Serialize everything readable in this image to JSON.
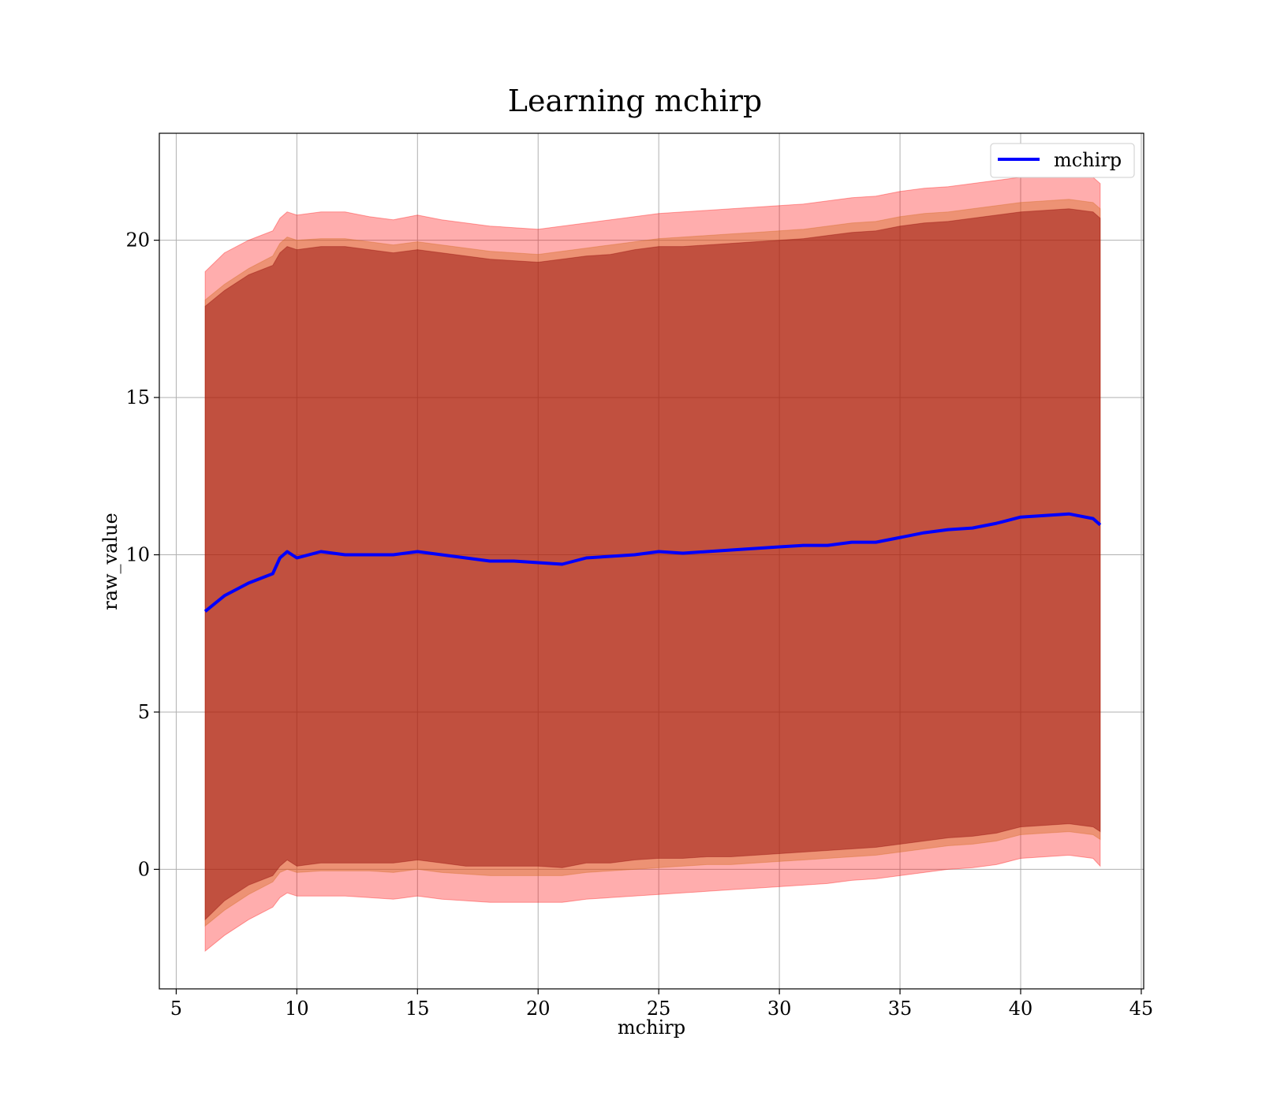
{
  "chart_data": {
    "type": "area",
    "title": "Learning mchirp",
    "xlabel": "mchirp",
    "ylabel": "raw_value",
    "xlim": [
      4.3,
      45.1
    ],
    "ylim": [
      -3.8,
      23.4
    ],
    "x_ticks": [
      5,
      10,
      15,
      20,
      25,
      30,
      35,
      40,
      45
    ],
    "y_ticks": [
      0,
      5,
      10,
      15,
      20
    ],
    "grid": true,
    "legend": {
      "placement": "upper right",
      "entries": [
        "mchirp"
      ]
    },
    "x": [
      6.2,
      7,
      8,
      9,
      9.3,
      9.6,
      10,
      11,
      12,
      13,
      14,
      15,
      16,
      17,
      18,
      19,
      20,
      21,
      22,
      23,
      24,
      25,
      26,
      27,
      28,
      29,
      30,
      31,
      32,
      33,
      34,
      35,
      36,
      37,
      38,
      39,
      40,
      41,
      42,
      43,
      43.3
    ],
    "series": [
      {
        "name": "mchirp",
        "role": "mean",
        "color": "#0000ff",
        "values": [
          8.2,
          8.7,
          9.1,
          9.4,
          9.9,
          10.1,
          9.9,
          10.1,
          10.0,
          10.0,
          10.0,
          10.1,
          10.0,
          9.9,
          9.8,
          9.8,
          9.75,
          9.7,
          9.9,
          9.95,
          10.0,
          10.1,
          10.05,
          10.1,
          10.15,
          10.2,
          10.25,
          10.3,
          10.3,
          10.4,
          10.4,
          10.55,
          10.7,
          10.8,
          10.85,
          11.0,
          11.2,
          11.25,
          11.3,
          11.15,
          10.95
        ]
      },
      {
        "role": "band_1sigma",
        "color": "#8b0000",
        "upper": [
          17.9,
          18.4,
          18.9,
          19.2,
          19.6,
          19.8,
          19.7,
          19.8,
          19.8,
          19.7,
          19.6,
          19.7,
          19.6,
          19.5,
          19.4,
          19.35,
          19.3,
          19.4,
          19.5,
          19.55,
          19.7,
          19.8,
          19.8,
          19.85,
          19.9,
          19.95,
          20.0,
          20.05,
          20.15,
          20.25,
          20.3,
          20.45,
          20.55,
          20.6,
          20.7,
          20.8,
          20.9,
          20.95,
          21.0,
          20.9,
          20.7
        ],
        "lower": [
          -1.6,
          -1.0,
          -0.5,
          -0.2,
          0.1,
          0.3,
          0.1,
          0.2,
          0.2,
          0.2,
          0.2,
          0.3,
          0.2,
          0.1,
          0.1,
          0.1,
          0.1,
          0.05,
          0.2,
          0.2,
          0.3,
          0.35,
          0.35,
          0.4,
          0.4,
          0.45,
          0.5,
          0.55,
          0.6,
          0.65,
          0.7,
          0.8,
          0.9,
          1.0,
          1.05,
          1.15,
          1.35,
          1.4,
          1.45,
          1.35,
          1.2
        ]
      },
      {
        "role": "band_1.5sigma",
        "color": "#d2691e",
        "upper": [
          18.1,
          18.6,
          19.1,
          19.5,
          19.9,
          20.1,
          20.0,
          20.05,
          20.05,
          19.95,
          19.85,
          19.95,
          19.85,
          19.75,
          19.65,
          19.6,
          19.55,
          19.65,
          19.75,
          19.85,
          19.95,
          20.05,
          20.1,
          20.15,
          20.2,
          20.25,
          20.3,
          20.35,
          20.45,
          20.55,
          20.6,
          20.75,
          20.85,
          20.9,
          21.0,
          21.1,
          21.2,
          21.25,
          21.3,
          21.2,
          21.0
        ],
        "lower": [
          -1.8,
          -1.3,
          -0.8,
          -0.4,
          -0.1,
          0.0,
          -0.1,
          -0.05,
          -0.05,
          -0.05,
          -0.1,
          0.0,
          -0.1,
          -0.15,
          -0.2,
          -0.2,
          -0.2,
          -0.2,
          -0.1,
          -0.05,
          0.0,
          0.05,
          0.1,
          0.15,
          0.15,
          0.2,
          0.25,
          0.3,
          0.35,
          0.4,
          0.45,
          0.55,
          0.65,
          0.75,
          0.8,
          0.9,
          1.1,
          1.15,
          1.2,
          1.1,
          0.95
        ]
      },
      {
        "role": "band_2sigma",
        "color": "#ff0000",
        "upper": [
          19.0,
          19.6,
          20.0,
          20.3,
          20.7,
          20.9,
          20.8,
          20.9,
          20.9,
          20.75,
          20.65,
          20.8,
          20.65,
          20.55,
          20.45,
          20.4,
          20.35,
          20.45,
          20.55,
          20.65,
          20.75,
          20.85,
          20.9,
          20.95,
          21.0,
          21.05,
          21.1,
          21.15,
          21.25,
          21.35,
          21.4,
          21.55,
          21.65,
          21.7,
          21.8,
          21.9,
          22.0,
          22.05,
          22.1,
          22.0,
          21.8
        ],
        "lower": [
          -2.6,
          -2.1,
          -1.6,
          -1.2,
          -0.9,
          -0.75,
          -0.85,
          -0.85,
          -0.85,
          -0.9,
          -0.95,
          -0.85,
          -0.95,
          -1.0,
          -1.05,
          -1.05,
          -1.05,
          -1.05,
          -0.95,
          -0.9,
          -0.85,
          -0.8,
          -0.75,
          -0.7,
          -0.65,
          -0.6,
          -0.55,
          -0.5,
          -0.45,
          -0.35,
          -0.3,
          -0.2,
          -0.1,
          0.0,
          0.05,
          0.15,
          0.35,
          0.4,
          0.45,
          0.35,
          0.1
        ]
      }
    ]
  }
}
